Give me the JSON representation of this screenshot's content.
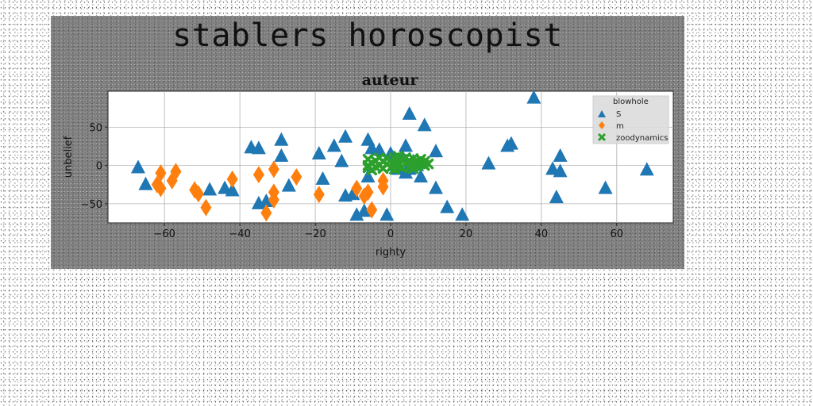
{
  "banner": "stablers horoscopist",
  "chart_data": {
    "type": "scatter",
    "title": "auteur",
    "xlabel": "righty",
    "ylabel": "unbelief",
    "xlim": [
      -75,
      75
    ],
    "ylim": [
      -75,
      97
    ],
    "xticks": [
      -60,
      -40,
      -20,
      0,
      20,
      40,
      60
    ],
    "yticks": [
      -50,
      0,
      50
    ],
    "grid": true,
    "legend": {
      "title": "blowhole",
      "position": "top-right"
    },
    "series": [
      {
        "name": "S",
        "marker": "triangle",
        "color": "#1f77b4",
        "points": [
          [
            -67,
            -3
          ],
          [
            -65,
            -25
          ],
          [
            -48,
            -32
          ],
          [
            -44,
            -30
          ],
          [
            -42,
            -33
          ],
          [
            -37,
            23
          ],
          [
            -35,
            22
          ],
          [
            -35,
            -50
          ],
          [
            -33,
            -47
          ],
          [
            -29,
            12
          ],
          [
            -29,
            33
          ],
          [
            -27,
            -27
          ],
          [
            -19,
            15
          ],
          [
            -18,
            -18
          ],
          [
            -15,
            25
          ],
          [
            -13,
            5
          ],
          [
            -12,
            37
          ],
          [
            -12,
            -40
          ],
          [
            -10,
            -38
          ],
          [
            -9,
            -65
          ],
          [
            -7,
            -60
          ],
          [
            -6,
            33
          ],
          [
            -6,
            -15
          ],
          [
            -5,
            22
          ],
          [
            -3,
            20
          ],
          [
            -1,
            -65
          ],
          [
            0,
            15
          ],
          [
            1,
            0
          ],
          [
            2,
            -5
          ],
          [
            3,
            12
          ],
          [
            4,
            25
          ],
          [
            4,
            -10
          ],
          [
            5,
            -5
          ],
          [
            5,
            67
          ],
          [
            6,
            5
          ],
          [
            7,
            0
          ],
          [
            8,
            -15
          ],
          [
            9,
            52
          ],
          [
            12,
            18
          ],
          [
            12,
            -30
          ],
          [
            15,
            -55
          ],
          [
            19,
            -65
          ],
          [
            26,
            2
          ],
          [
            31,
            25
          ],
          [
            32,
            28
          ],
          [
            38,
            88
          ],
          [
            43,
            -5
          ],
          [
            44,
            -42
          ],
          [
            45,
            12
          ],
          [
            45,
            -8
          ],
          [
            57,
            -30
          ],
          [
            68,
            -6
          ]
        ]
      },
      {
        "name": "m",
        "marker": "diamond",
        "color": "#ff7f0e",
        "points": [
          [
            -61,
            -10
          ],
          [
            -62,
            -25
          ],
          [
            -61,
            -30
          ],
          [
            -57,
            -8
          ],
          [
            -58,
            -20
          ],
          [
            -52,
            -32
          ],
          [
            -51,
            -37
          ],
          [
            -49,
            -55
          ],
          [
            -42,
            -18
          ],
          [
            -35,
            -12
          ],
          [
            -33,
            -62
          ],
          [
            -31,
            -35
          ],
          [
            -31,
            -45
          ],
          [
            -31,
            -5
          ],
          [
            -25,
            -15
          ],
          [
            -19,
            -38
          ],
          [
            -9,
            -30
          ],
          [
            -7,
            -40
          ],
          [
            -6,
            -35
          ],
          [
            -5,
            -58
          ],
          [
            -2,
            -28
          ],
          [
            -2,
            -20
          ]
        ]
      },
      {
        "name": "zoodynamics",
        "marker": "x",
        "color": "#2ca02c",
        "points": [
          [
            -6,
            -3
          ],
          [
            -6,
            8
          ],
          [
            -5,
            3
          ],
          [
            -4,
            -2
          ],
          [
            -4,
            6
          ],
          [
            -3,
            10
          ],
          [
            -3,
            0
          ],
          [
            -2,
            5
          ],
          [
            -2,
            -4
          ],
          [
            -1,
            2
          ],
          [
            -1,
            9
          ],
          [
            0,
            -3
          ],
          [
            0,
            6
          ],
          [
            1,
            2
          ],
          [
            1,
            10
          ],
          [
            1,
            -5
          ],
          [
            2,
            4
          ],
          [
            2,
            -1
          ],
          [
            3,
            8
          ],
          [
            3,
            -3
          ],
          [
            4,
            3
          ],
          [
            4,
            10
          ],
          [
            5,
            -2
          ],
          [
            5,
            6
          ],
          [
            6,
            1
          ],
          [
            6,
            9
          ],
          [
            6,
            -4
          ],
          [
            7,
            5
          ],
          [
            7,
            -1
          ],
          [
            8,
            3
          ],
          [
            8,
            8
          ],
          [
            9,
            0
          ],
          [
            9,
            5
          ],
          [
            -5,
            -6
          ],
          [
            10,
            2
          ],
          [
            -6,
            0
          ],
          [
            2,
            12
          ]
        ]
      }
    ]
  }
}
